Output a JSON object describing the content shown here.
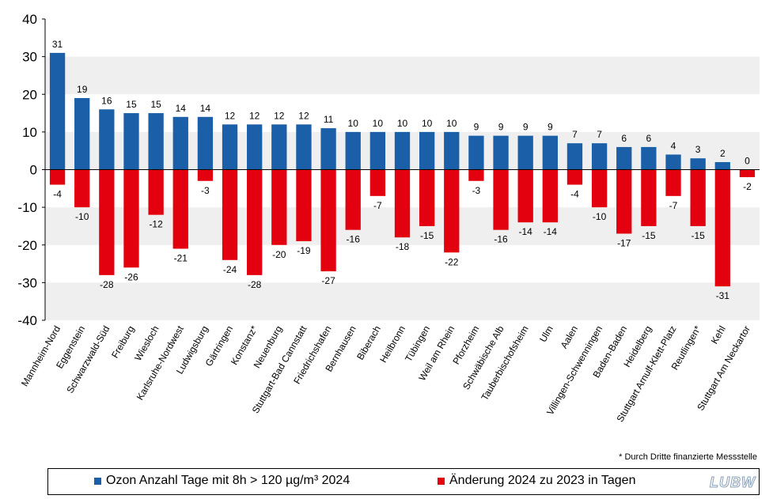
{
  "chart_data": {
    "type": "bar",
    "categories": [
      "Mannheim-Nord",
      "Eggenstein",
      "Schwarzwald-Süd",
      "Freiburg",
      "Wiesloch",
      "Karlsruhe-Nordwest",
      "Ludwigsburg",
      "Gärtringen",
      "Konstanz*",
      "Neuenburg",
      "Stuttgart-Bad Cannstatt",
      "Friedrichshafen",
      "Bernhausen",
      "Biberach",
      "Heilbronn",
      "Tübingen",
      "Weil am Rhein",
      "Pforzheim",
      "Schwäbische Alb",
      "Tauberbischofsheim",
      "Ulm",
      "Aalen",
      "Villingen-Schwenningen",
      "Baden-Baden",
      "Heidelberg",
      "Stuttgart Arnulf-Klett-Platz",
      "Reutlingen*",
      "Kehl",
      "Stuttgart Am Neckartor"
    ],
    "series": [
      {
        "name": "Ozon Anzahl Tage mit 8h > 120 µg/m³ 2024",
        "color": "#1a5fa8",
        "values": [
          31,
          19,
          16,
          15,
          15,
          14,
          14,
          12,
          12,
          12,
          12,
          11,
          10,
          10,
          10,
          10,
          10,
          9,
          9,
          9,
          9,
          7,
          7,
          6,
          6,
          4,
          3,
          2,
          0
        ]
      },
      {
        "name": "Änderung 2024 zu 2023 in Tagen",
        "color": "#e3000f",
        "values": [
          -4,
          -10,
          -28,
          -26,
          -12,
          -21,
          -3,
          -24,
          -28,
          -20,
          -19,
          -27,
          -16,
          -7,
          -18,
          -15,
          -22,
          -3,
          -16,
          -14,
          -14,
          -4,
          -10,
          -17,
          -15,
          -7,
          -15,
          -31,
          -2
        ]
      }
    ],
    "yticks": [
      "40",
      "30",
      "20",
      "10",
      "0",
      "-10",
      "-20",
      "-30",
      "-40"
    ],
    "ylim": [
      -40,
      40
    ],
    "title": "",
    "xlabel": "",
    "ylabel": ""
  },
  "footnote": "* Durch Dritte finanzierte Messstelle",
  "logo": "LUBW"
}
